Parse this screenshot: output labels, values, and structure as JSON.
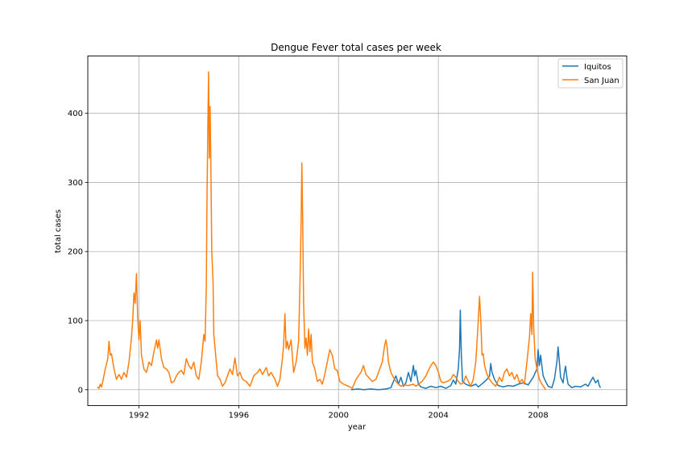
{
  "chart_data": {
    "type": "line",
    "title": "Dengue Fever total cases per week",
    "xlabel": "year",
    "ylabel": "total cases",
    "xlim": [
      1989.95,
      2011.55
    ],
    "ylim": [
      -23,
      483
    ],
    "x_ticks": [
      1992,
      1996,
      2000,
      2004,
      2008
    ],
    "x_tick_labels": [
      "1992",
      "1996",
      "2000",
      "2004",
      "2008"
    ],
    "y_ticks": [
      0,
      100,
      200,
      300,
      400
    ],
    "y_tick_labels": [
      "0",
      "100",
      "200",
      "300",
      "400"
    ],
    "grid": true,
    "legend_position": "top-right",
    "series": [
      {
        "name": "Iquitos",
        "color": "#1f77b4",
        "points": [
          [
            2000.5,
            0
          ],
          [
            2000.8,
            1
          ],
          [
            2001.0,
            0
          ],
          [
            2001.3,
            1
          ],
          [
            2001.6,
            0
          ],
          [
            2001.9,
            1
          ],
          [
            2002.1,
            3
          ],
          [
            2002.2,
            12
          ],
          [
            2002.3,
            20
          ],
          [
            2002.4,
            8
          ],
          [
            2002.5,
            18
          ],
          [
            2002.6,
            5
          ],
          [
            2002.7,
            10
          ],
          [
            2002.8,
            25
          ],
          [
            2002.9,
            12
          ],
          [
            2003.0,
            35
          ],
          [
            2003.05,
            20
          ],
          [
            2003.1,
            28
          ],
          [
            2003.2,
            8
          ],
          [
            2003.3,
            4
          ],
          [
            2003.5,
            2
          ],
          [
            2003.7,
            5
          ],
          [
            2003.9,
            3
          ],
          [
            2004.1,
            5
          ],
          [
            2004.3,
            2
          ],
          [
            2004.5,
            6
          ],
          [
            2004.6,
            14
          ],
          [
            2004.7,
            8
          ],
          [
            2004.8,
            30
          ],
          [
            2004.85,
            60
          ],
          [
            2004.88,
            115
          ],
          [
            2004.92,
            50
          ],
          [
            2004.97,
            12
          ],
          [
            2005.1,
            8
          ],
          [
            2005.3,
            5
          ],
          [
            2005.5,
            8
          ],
          [
            2005.6,
            4
          ],
          [
            2005.8,
            10
          ],
          [
            2005.95,
            15
          ],
          [
            2006.05,
            20
          ],
          [
            2006.1,
            38
          ],
          [
            2006.15,
            25
          ],
          [
            2006.25,
            15
          ],
          [
            2006.4,
            6
          ],
          [
            2006.6,
            4
          ],
          [
            2006.8,
            6
          ],
          [
            2007.0,
            5
          ],
          [
            2007.2,
            8
          ],
          [
            2007.4,
            10
          ],
          [
            2007.6,
            7
          ],
          [
            2007.8,
            18
          ],
          [
            2007.95,
            30
          ],
          [
            2008.0,
            58
          ],
          [
            2008.05,
            35
          ],
          [
            2008.1,
            50
          ],
          [
            2008.2,
            20
          ],
          [
            2008.3,
            12
          ],
          [
            2008.4,
            5
          ],
          [
            2008.55,
            3
          ],
          [
            2008.65,
            15
          ],
          [
            2008.75,
            40
          ],
          [
            2008.8,
            62
          ],
          [
            2008.85,
            40
          ],
          [
            2008.9,
            18
          ],
          [
            2009.0,
            10
          ],
          [
            2009.05,
            25
          ],
          [
            2009.1,
            34
          ],
          [
            2009.15,
            18
          ],
          [
            2009.2,
            8
          ],
          [
            2009.35,
            3
          ],
          [
            2009.5,
            5
          ],
          [
            2009.7,
            4
          ],
          [
            2009.9,
            8
          ],
          [
            2010.0,
            5
          ],
          [
            2010.1,
            12
          ],
          [
            2010.2,
            18
          ],
          [
            2010.3,
            10
          ],
          [
            2010.4,
            14
          ],
          [
            2010.45,
            6
          ],
          [
            2010.5,
            3
          ]
        ]
      },
      {
        "name": "San Juan",
        "color": "#ff7f0e",
        "points": [
          [
            1990.33,
            4
          ],
          [
            1990.4,
            2
          ],
          [
            1990.45,
            8
          ],
          [
            1990.5,
            4
          ],
          [
            1990.55,
            12
          ],
          [
            1990.65,
            30
          ],
          [
            1990.75,
            45
          ],
          [
            1990.8,
            70
          ],
          [
            1990.85,
            50
          ],
          [
            1990.9,
            52
          ],
          [
            1991.0,
            30
          ],
          [
            1991.1,
            15
          ],
          [
            1991.2,
            22
          ],
          [
            1991.3,
            15
          ],
          [
            1991.4,
            25
          ],
          [
            1991.5,
            18
          ],
          [
            1991.6,
            40
          ],
          [
            1991.7,
            75
          ],
          [
            1991.75,
            100
          ],
          [
            1991.8,
            140
          ],
          [
            1991.85,
            125
          ],
          [
            1991.9,
            168
          ],
          [
            1991.95,
            105
          ],
          [
            1992.0,
            72
          ],
          [
            1992.05,
            100
          ],
          [
            1992.1,
            50
          ],
          [
            1992.2,
            30
          ],
          [
            1992.3,
            25
          ],
          [
            1992.4,
            40
          ],
          [
            1992.5,
            35
          ],
          [
            1992.6,
            55
          ],
          [
            1992.7,
            72
          ],
          [
            1992.75,
            60
          ],
          [
            1992.8,
            72
          ],
          [
            1992.9,
            45
          ],
          [
            1993.0,
            32
          ],
          [
            1993.1,
            30
          ],
          [
            1993.2,
            25
          ],
          [
            1993.3,
            10
          ],
          [
            1993.4,
            12
          ],
          [
            1993.5,
            20
          ],
          [
            1993.6,
            25
          ],
          [
            1993.7,
            28
          ],
          [
            1993.8,
            22
          ],
          [
            1993.9,
            45
          ],
          [
            1994.0,
            35
          ],
          [
            1994.1,
            30
          ],
          [
            1994.2,
            40
          ],
          [
            1994.3,
            20
          ],
          [
            1994.4,
            15
          ],
          [
            1994.5,
            40
          ],
          [
            1994.6,
            80
          ],
          [
            1994.65,
            70
          ],
          [
            1994.7,
            150
          ],
          [
            1994.73,
            280
          ],
          [
            1994.76,
            380
          ],
          [
            1994.79,
            460
          ],
          [
            1994.82,
            335
          ],
          [
            1994.85,
            410
          ],
          [
            1994.88,
            330
          ],
          [
            1994.92,
            200
          ],
          [
            1994.97,
            155
          ],
          [
            1995.0,
            80
          ],
          [
            1995.05,
            60
          ],
          [
            1995.1,
            40
          ],
          [
            1995.15,
            20
          ],
          [
            1995.25,
            15
          ],
          [
            1995.35,
            5
          ],
          [
            1995.45,
            10
          ],
          [
            1995.55,
            20
          ],
          [
            1995.65,
            30
          ],
          [
            1995.75,
            22
          ],
          [
            1995.85,
            46
          ],
          [
            1995.95,
            20
          ],
          [
            1996.05,
            25
          ],
          [
            1996.15,
            15
          ],
          [
            1996.3,
            12
          ],
          [
            1996.45,
            5
          ],
          [
            1996.6,
            20
          ],
          [
            1996.75,
            25
          ],
          [
            1996.85,
            30
          ],
          [
            1996.95,
            22
          ],
          [
            1997.1,
            32
          ],
          [
            1997.2,
            20
          ],
          [
            1997.3,
            25
          ],
          [
            1997.45,
            15
          ],
          [
            1997.55,
            5
          ],
          [
            1997.65,
            15
          ],
          [
            1997.75,
            45
          ],
          [
            1997.8,
            65
          ],
          [
            1997.85,
            110
          ],
          [
            1997.9,
            60
          ],
          [
            1997.95,
            70
          ],
          [
            1998.0,
            58
          ],
          [
            1998.1,
            72
          ],
          [
            1998.2,
            25
          ],
          [
            1998.3,
            40
          ],
          [
            1998.4,
            70
          ],
          [
            1998.45,
            150
          ],
          [
            1998.5,
            240
          ],
          [
            1998.53,
            328
          ],
          [
            1998.56,
            250
          ],
          [
            1998.6,
            125
          ],
          [
            1998.65,
            60
          ],
          [
            1998.7,
            75
          ],
          [
            1998.75,
            50
          ],
          [
            1998.8,
            88
          ],
          [
            1998.85,
            55
          ],
          [
            1998.9,
            80
          ],
          [
            1998.95,
            40
          ],
          [
            1999.05,
            30
          ],
          [
            1999.15,
            12
          ],
          [
            1999.25,
            15
          ],
          [
            1999.35,
            8
          ],
          [
            1999.45,
            22
          ],
          [
            1999.55,
            40
          ],
          [
            1999.65,
            58
          ],
          [
            1999.75,
            50
          ],
          [
            1999.85,
            30
          ],
          [
            1999.95,
            28
          ],
          [
            2000.05,
            12
          ],
          [
            2000.2,
            8
          ],
          [
            2000.4,
            5
          ],
          [
            2000.55,
            2
          ],
          [
            2000.7,
            15
          ],
          [
            2000.8,
            20
          ],
          [
            2000.9,
            25
          ],
          [
            2001.0,
            35
          ],
          [
            2001.1,
            22
          ],
          [
            2001.2,
            18
          ],
          [
            2001.35,
            12
          ],
          [
            2001.5,
            15
          ],
          [
            2001.65,
            30
          ],
          [
            2001.75,
            40
          ],
          [
            2001.85,
            65
          ],
          [
            2001.9,
            72
          ],
          [
            2001.95,
            60
          ],
          [
            2002.0,
            40
          ],
          [
            2002.1,
            25
          ],
          [
            2002.2,
            18
          ],
          [
            2002.3,
            12
          ],
          [
            2002.4,
            8
          ],
          [
            2002.5,
            5
          ],
          [
            2002.6,
            7
          ],
          [
            2002.8,
            6
          ],
          [
            2003.0,
            8
          ],
          [
            2003.1,
            5
          ],
          [
            2003.2,
            8
          ],
          [
            2003.35,
            12
          ],
          [
            2003.5,
            20
          ],
          [
            2003.6,
            28
          ],
          [
            2003.7,
            35
          ],
          [
            2003.8,
            40
          ],
          [
            2003.9,
            35
          ],
          [
            2004.0,
            25
          ],
          [
            2004.1,
            12
          ],
          [
            2004.2,
            10
          ],
          [
            2004.35,
            12
          ],
          [
            2004.5,
            15
          ],
          [
            2004.6,
            22
          ],
          [
            2004.7,
            18
          ],
          [
            2004.8,
            12
          ],
          [
            2004.9,
            8
          ],
          [
            2005.0,
            10
          ],
          [
            2005.1,
            20
          ],
          [
            2005.2,
            12
          ],
          [
            2005.3,
            5
          ],
          [
            2005.4,
            15
          ],
          [
            2005.5,
            40
          ],
          [
            2005.55,
            70
          ],
          [
            2005.6,
            100
          ],
          [
            2005.65,
            135
          ],
          [
            2005.7,
            100
          ],
          [
            2005.75,
            50
          ],
          [
            2005.8,
            52
          ],
          [
            2005.85,
            35
          ],
          [
            2005.95,
            22
          ],
          [
            2006.05,
            15
          ],
          [
            2006.15,
            10
          ],
          [
            2006.3,
            5
          ],
          [
            2006.45,
            18
          ],
          [
            2006.55,
            12
          ],
          [
            2006.65,
            25
          ],
          [
            2006.75,
            30
          ],
          [
            2006.85,
            20
          ],
          [
            2006.95,
            25
          ],
          [
            2007.05,
            15
          ],
          [
            2007.15,
            22
          ],
          [
            2007.25,
            10
          ],
          [
            2007.35,
            15
          ],
          [
            2007.45,
            8
          ],
          [
            2007.55,
            40
          ],
          [
            2007.65,
            75
          ],
          [
            2007.7,
            110
          ],
          [
            2007.75,
            80
          ],
          [
            2007.78,
            170
          ],
          [
            2007.82,
            90
          ],
          [
            2007.88,
            45
          ],
          [
            2007.95,
            30
          ],
          [
            2008.05,
            15
          ],
          [
            2008.15,
            8
          ],
          [
            2008.25,
            3
          ],
          [
            2008.3,
            0
          ]
        ]
      }
    ]
  }
}
